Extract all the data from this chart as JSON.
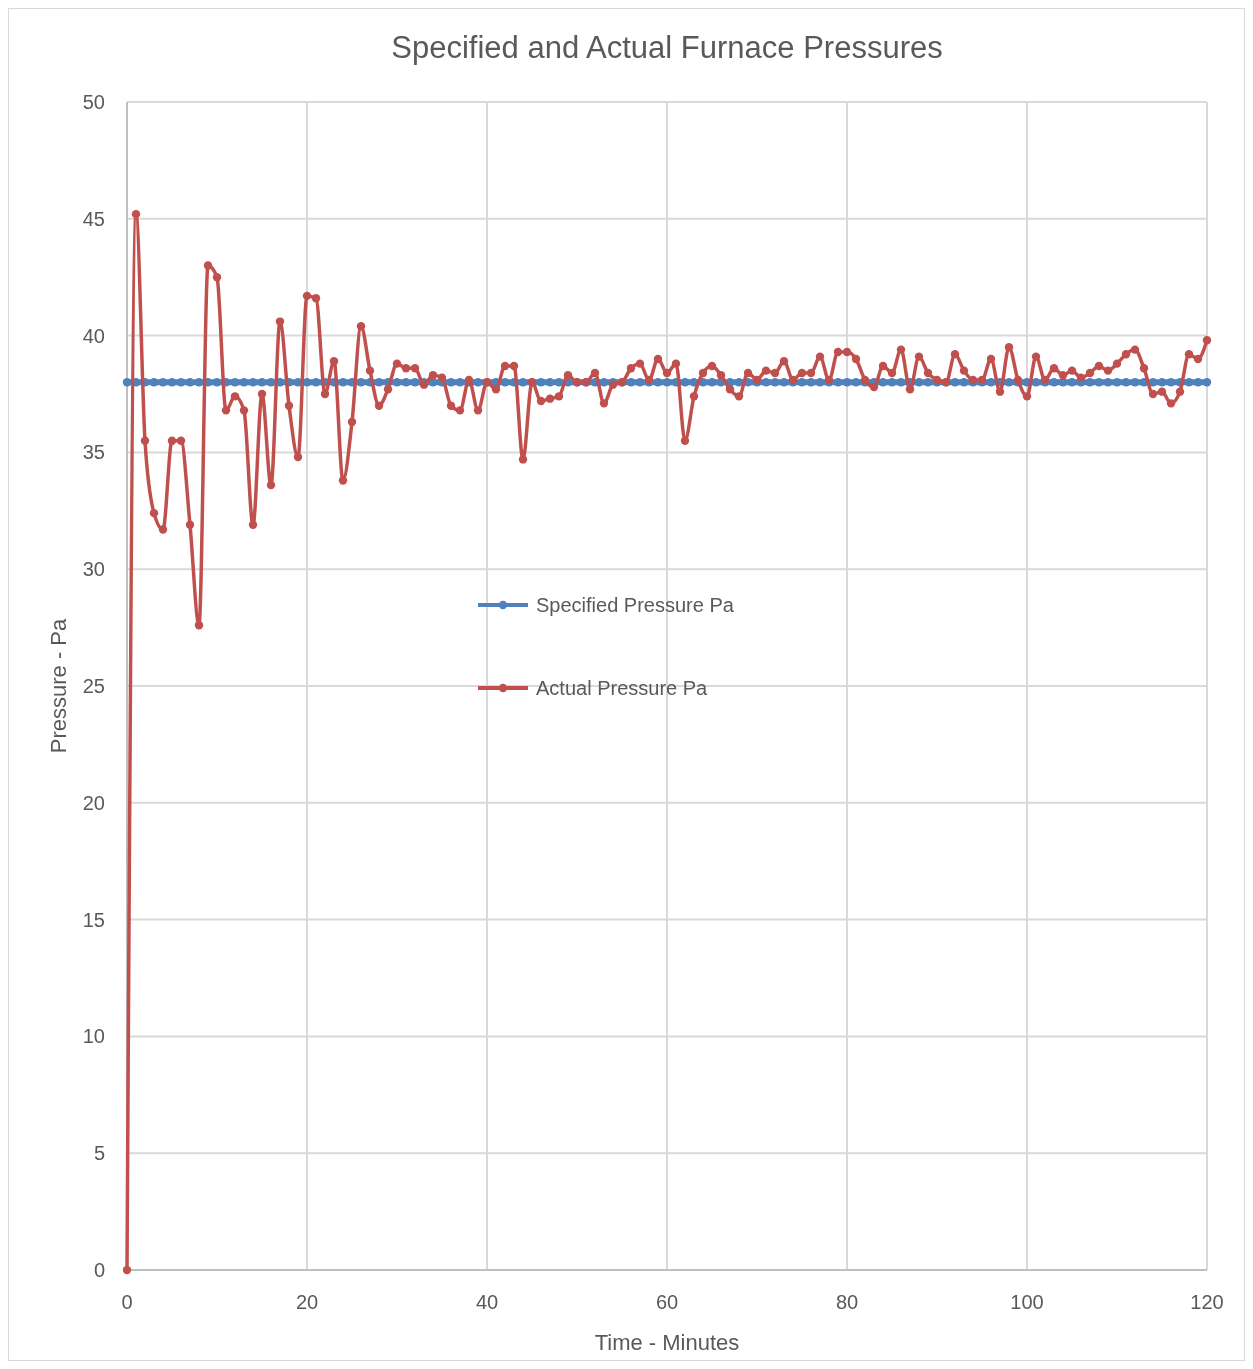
{
  "chart_data": {
    "type": "line",
    "title": "Specified and Actual Furnace Pressures",
    "xlabel": "Time - Minutes",
    "ylabel": "Pressure - Pa",
    "x": [
      0,
      1,
      2,
      3,
      4,
      5,
      6,
      7,
      8,
      9,
      10,
      11,
      12,
      13,
      14,
      15,
      16,
      17,
      18,
      19,
      20,
      21,
      22,
      23,
      24,
      25,
      26,
      27,
      28,
      29,
      30,
      31,
      32,
      33,
      34,
      35,
      36,
      37,
      38,
      39,
      40,
      41,
      42,
      43,
      44,
      45,
      46,
      47,
      48,
      49,
      50,
      51,
      52,
      53,
      54,
      55,
      56,
      57,
      58,
      59,
      60,
      61,
      62,
      63,
      64,
      65,
      66,
      67,
      68,
      69,
      70,
      71,
      72,
      73,
      74,
      75,
      76,
      77,
      78,
      79,
      80,
      81,
      82,
      83,
      84,
      85,
      86,
      87,
      88,
      89,
      90,
      91,
      92,
      93,
      94,
      95,
      96,
      97,
      98,
      99,
      100,
      101,
      102,
      103,
      104,
      105,
      106,
      107,
      108,
      109,
      110,
      111,
      112,
      113,
      114,
      115,
      116,
      117,
      118,
      119,
      120
    ],
    "series": [
      {
        "name": "Specified Pressure Pa",
        "color": "#4f81bd",
        "values": [
          38,
          38,
          38,
          38,
          38,
          38,
          38,
          38,
          38,
          38,
          38,
          38,
          38,
          38,
          38,
          38,
          38,
          38,
          38,
          38,
          38,
          38,
          38,
          38,
          38,
          38,
          38,
          38,
          38,
          38,
          38,
          38,
          38,
          38,
          38,
          38,
          38,
          38,
          38,
          38,
          38,
          38,
          38,
          38,
          38,
          38,
          38,
          38,
          38,
          38,
          38,
          38,
          38,
          38,
          38,
          38,
          38,
          38,
          38,
          38,
          38,
          38,
          38,
          38,
          38,
          38,
          38,
          38,
          38,
          38,
          38,
          38,
          38,
          38,
          38,
          38,
          38,
          38,
          38,
          38,
          38,
          38,
          38,
          38,
          38,
          38,
          38,
          38,
          38,
          38,
          38,
          38,
          38,
          38,
          38,
          38,
          38,
          38,
          38,
          38,
          38,
          38,
          38,
          38,
          38,
          38,
          38,
          38,
          38,
          38,
          38,
          38,
          38,
          38,
          38,
          38,
          38,
          38,
          38,
          38,
          38
        ]
      },
      {
        "name": "Actual Pressure Pa",
        "color": "#c0504d",
        "values": [
          0,
          45.2,
          35.5,
          32.4,
          31.7,
          35.5,
          35.5,
          31.9,
          27.6,
          43.0,
          42.5,
          36.8,
          37.4,
          36.8,
          31.9,
          37.5,
          33.6,
          40.6,
          37.0,
          34.8,
          41.7,
          41.6,
          37.5,
          38.9,
          33.8,
          36.3,
          40.4,
          38.5,
          37.0,
          37.7,
          38.8,
          38.6,
          38.6,
          37.9,
          38.3,
          38.2,
          37.0,
          36.8,
          38.1,
          36.8,
          38.0,
          37.7,
          38.7,
          38.7,
          34.7,
          38.0,
          37.2,
          37.3,
          37.4,
          38.3,
          38.0,
          38.0,
          38.4,
          37.1,
          37.9,
          38.0,
          38.6,
          38.8,
          38.1,
          39.0,
          38.4,
          38.8,
          35.5,
          37.4,
          38.4,
          38.7,
          38.3,
          37.7,
          37.4,
          38.4,
          38.1,
          38.5,
          38.4,
          38.9,
          38.1,
          38.4,
          38.4,
          39.1,
          38.1,
          39.3,
          39.3,
          39.0,
          38.1,
          37.8,
          38.7,
          38.4,
          39.4,
          37.7,
          39.1,
          38.4,
          38.1,
          38.0,
          39.2,
          38.5,
          38.1,
          38.1,
          39.0,
          37.6,
          39.5,
          38.1,
          37.4,
          39.1,
          38.1,
          38.6,
          38.3,
          38.5,
          38.2,
          38.4,
          38.7,
          38.5,
          38.8,
          39.2,
          39.4,
          38.6,
          37.5,
          37.6,
          37.1,
          37.6,
          39.2,
          39.0,
          39.8
        ]
      }
    ],
    "xlim": [
      0,
      120
    ],
    "xticks": [
      0,
      20,
      40,
      60,
      80,
      100,
      120
    ],
    "ylim": [
      0,
      50
    ],
    "yticks": [
      0,
      5,
      10,
      15,
      20,
      25,
      30,
      35,
      40,
      45,
      50
    ],
    "grid": true,
    "legend": "center",
    "marker": "circle",
    "line_style": "solid"
  }
}
